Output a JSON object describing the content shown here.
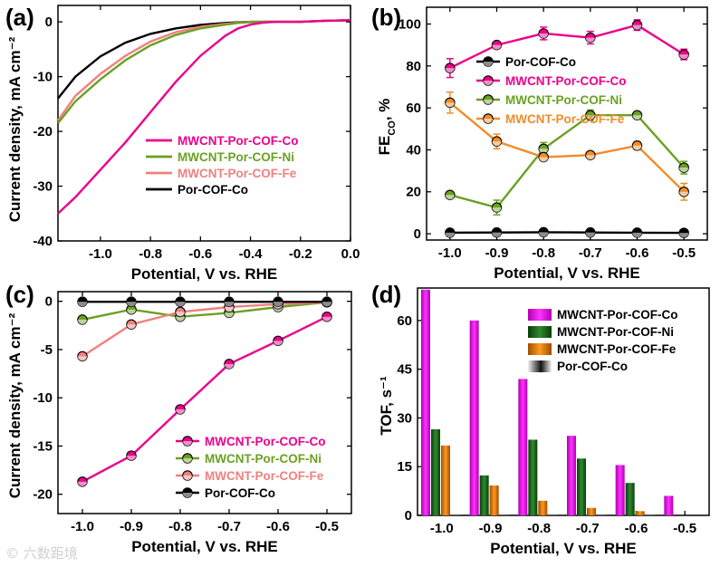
{
  "watermark": "© 六数距境",
  "chart_data": [
    {
      "panel": "(a)",
      "type": "line",
      "xlabel": "Potential, V vs. RHE",
      "ylabel": "Current density, mA cm⁻²",
      "xlim": [
        -1.17,
        0.0
      ],
      "ylim": [
        -40,
        3
      ],
      "xticks": [
        -1.0,
        -0.8,
        -0.6,
        -0.4,
        -0.2,
        0.0
      ],
      "xtick_labels": [
        "-1.0",
        "-0.8",
        "-0.6",
        "-0.4",
        "-0.2",
        "0.0"
      ],
      "yticks": [
        0,
        -10,
        -20,
        -30,
        -40
      ],
      "ytick_labels": [
        "0",
        "-10",
        "-20",
        "-30",
        "-40"
      ],
      "legend_position": "center-right",
      "series": [
        {
          "name": "MWCNT-Por-COF-Co",
          "color": "#ec008c",
          "x": [
            -1.17,
            -1.1,
            -1.0,
            -0.9,
            -0.8,
            -0.7,
            -0.6,
            -0.5,
            -0.45,
            -0.4,
            -0.35,
            -0.3,
            -0.2,
            -0.1,
            0.0
          ],
          "y": [
            -35,
            -32,
            -27,
            -22,
            -16.5,
            -11,
            -6.2,
            -2.5,
            -1.2,
            -0.5,
            -0.15,
            0,
            0,
            0.2,
            0.3
          ]
        },
        {
          "name": "MWCNT-Por-COF-Ni",
          "color": "#6aa121",
          "x": [
            -1.17,
            -1.1,
            -1.0,
            -0.9,
            -0.8,
            -0.7,
            -0.6,
            -0.5,
            -0.45,
            -0.4,
            -0.35,
            -0.3,
            -0.2,
            -0.1,
            0.0
          ],
          "y": [
            -18.5,
            -14.5,
            -10.5,
            -7,
            -4.3,
            -2.4,
            -1.2,
            -0.5,
            -0.2,
            -0.05,
            0,
            0,
            0,
            0.2,
            0.3
          ]
        },
        {
          "name": "MWCNT-Por-COF-Fe",
          "color": "#f08080",
          "x": [
            -1.17,
            -1.1,
            -1.0,
            -0.9,
            -0.8,
            -0.7,
            -0.6,
            -0.5,
            -0.45,
            -0.4,
            -0.35,
            -0.3,
            -0.2,
            -0.1,
            0.0
          ],
          "y": [
            -18,
            -13.5,
            -9.5,
            -6.2,
            -3.6,
            -1.9,
            -0.9,
            -0.35,
            -0.12,
            0,
            0,
            0,
            0,
            0.2,
            0.3
          ]
        },
        {
          "name": "Por-COF-Co",
          "color": "#000000",
          "x": [
            -1.17,
            -1.1,
            -1.0,
            -0.9,
            -0.8,
            -0.7,
            -0.6,
            -0.5,
            -0.45,
            -0.4,
            -0.35,
            -0.3,
            -0.2,
            -0.1,
            0.0
          ],
          "y": [
            -14,
            -10,
            -6.3,
            -3.8,
            -2.2,
            -1.2,
            -0.55,
            -0.2,
            -0.07,
            0,
            0,
            0,
            0,
            0.2,
            0.3
          ]
        }
      ]
    },
    {
      "panel": "(b)",
      "type": "line",
      "xlabel": "Potential, V vs. RHE",
      "ylabel_main": "FE",
      "ylabel_sub": "CO",
      "ylabel_suffix": ", %",
      "x": [
        -1.0,
        -0.9,
        -0.8,
        -0.7,
        -0.6,
        -0.5
      ],
      "xlim": [
        -1.05,
        -0.45
      ],
      "ylim": [
        -3,
        108
      ],
      "xticks": [
        -1.0,
        -0.9,
        -0.8,
        -0.7,
        -0.6,
        -0.5
      ],
      "xtick_labels": [
        "-1.0",
        "-0.9",
        "-0.8",
        "-0.7",
        "-0.6",
        "-0.5"
      ],
      "yticks": [
        0,
        20,
        40,
        60,
        80,
        100
      ],
      "ytick_labels": [
        "0",
        "20",
        "40",
        "60",
        "80",
        "100"
      ],
      "legend_position": "top-left",
      "series": [
        {
          "name": "Por-COF-Co",
          "color": "#000000",
          "values": [
            0.5,
            0.6,
            0.7,
            0.6,
            0.5,
            0.4
          ],
          "err": [
            0,
            0,
            0,
            0,
            0,
            0
          ]
        },
        {
          "name": "MWCNT-Por-COF-Co",
          "color": "#ec008c",
          "values": [
            79,
            90,
            95.5,
            93.5,
            99.5,
            85.5
          ],
          "err": [
            4.5,
            1.5,
            3,
            3,
            2.5,
            2.5
          ]
        },
        {
          "name": "MWCNT-Por-COF-Ni",
          "color": "#6aa121",
          "values": [
            18.5,
            12.5,
            40.5,
            56.5,
            56.5,
            31.5
          ],
          "err": [
            1,
            3.5,
            3,
            2.5,
            1.5,
            3
          ]
        },
        {
          "name": "MWCNT-Por-COF-Fe",
          "color": "#f28c28",
          "values": [
            62.5,
            44,
            36.5,
            37.5,
            42,
            20
          ],
          "err": [
            5,
            3.5,
            1,
            1.5,
            2,
            4
          ]
        }
      ]
    },
    {
      "panel": "(c)",
      "type": "line",
      "xlabel": "Potential, V vs. RHE",
      "ylabel": "Current density, mA cm⁻²",
      "x": [
        -1.0,
        -0.9,
        -0.8,
        -0.7,
        -0.6,
        -0.5
      ],
      "xlim": [
        -1.05,
        -0.45
      ],
      "ylim": [
        -22,
        1
      ],
      "xticks": [
        -1.0,
        -0.9,
        -0.8,
        -0.7,
        -0.6,
        -0.5
      ],
      "xtick_labels": [
        "-1.0",
        "-0.9",
        "-0.8",
        "-0.7",
        "-0.6",
        "-0.5"
      ],
      "yticks": [
        0,
        -5,
        -10,
        -15,
        -20
      ],
      "ytick_labels": [
        "0",
        "-5",
        "-10",
        "-15",
        "-20"
      ],
      "legend_position": "bottom-right",
      "series": [
        {
          "name": "MWCNT-Por-COF-Co",
          "color": "#ec008c",
          "values": [
            -18.7,
            -16,
            -11.2,
            -6.5,
            -4.1,
            -1.6
          ]
        },
        {
          "name": "MWCNT-Por-COF-Ni",
          "color": "#6aa121",
          "values": [
            -1.9,
            -0.85,
            -1.6,
            -1.2,
            -0.6,
            -0.1
          ]
        },
        {
          "name": "MWCNT-Por-COF-Fe",
          "color": "#f08080",
          "values": [
            -5.7,
            -2.4,
            -1.1,
            -0.6,
            -0.3,
            -0.1
          ]
        },
        {
          "name": "Por-COF-Co",
          "color": "#000000",
          "values": [
            -0.05,
            -0.05,
            -0.05,
            -0.05,
            -0.05,
            -0.05
          ]
        }
      ]
    },
    {
      "panel": "(d)",
      "type": "bar",
      "xlabel": "Potential, V vs. RHE",
      "ylabel": "TOF, s⁻¹",
      "categories": [
        "-1.0",
        "-0.9",
        "-0.8",
        "-0.7",
        "-0.6",
        "-0.5"
      ],
      "ylim": [
        0,
        70
      ],
      "yticks": [
        0,
        15,
        30,
        45,
        60
      ],
      "ytick_labels": [
        "0",
        "15",
        "30",
        "45",
        "60"
      ],
      "legend_position": "top-right",
      "series": [
        {
          "name": "MWCNT-Por-COF-Co",
          "color": "#e01ee0",
          "values": [
            69.5,
            60,
            42,
            24.5,
            15.5,
            6
          ]
        },
        {
          "name": "MWCNT-Por-COF-Ni",
          "color": "#1f6b1f",
          "values": [
            26.5,
            12.3,
            23.3,
            17.5,
            10,
            0
          ]
        },
        {
          "name": "MWCNT-Por-COF-Fe",
          "color": "#e07b10",
          "values": [
            21.5,
            9.2,
            4.5,
            2.3,
            1.3,
            0
          ]
        },
        {
          "name": "Por-COF-Co",
          "color": "#444444",
          "values": [
            0.1,
            0.1,
            0.1,
            0.1,
            0.1,
            0
          ]
        }
      ]
    }
  ]
}
